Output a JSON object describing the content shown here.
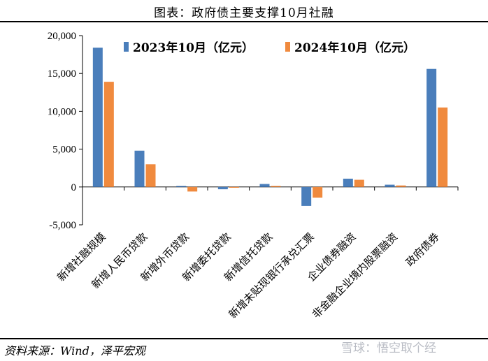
{
  "header": {
    "title": "图表：政府债主要支撑10月社融"
  },
  "footer": {
    "source": "资料来源：Wind，泽平宏观",
    "watermark": "雪球：悟空取个经"
  },
  "colors": {
    "series_2023": "#4a7ebb",
    "series_2024": "#f08a3e"
  },
  "chart_data": {
    "type": "bar",
    "categories": [
      "新增社融规模",
      "新增人民币贷款",
      "新增外币贷款",
      "新增委托贷款",
      "新增信托贷款",
      "新增未贴现银行承兑汇票",
      "企业债券融资",
      "非金融企业境内股票融资",
      "政府债券"
    ],
    "series": [
      {
        "name": "2023年10月（亿元）",
        "values": [
          18400,
          4800,
          150,
          -300,
          400,
          -2500,
          1100,
          300,
          15600
        ]
      },
      {
        "name": "2024年10月（亿元）",
        "values": [
          13900,
          3000,
          -600,
          -100,
          150,
          -1400,
          950,
          200,
          10500
        ]
      }
    ],
    "ylim": [
      -5000,
      20000
    ],
    "yticks": [
      "20,000",
      "15,000",
      "10,000",
      "5,000",
      "0",
      "-5,000"
    ],
    "legend": "top"
  }
}
